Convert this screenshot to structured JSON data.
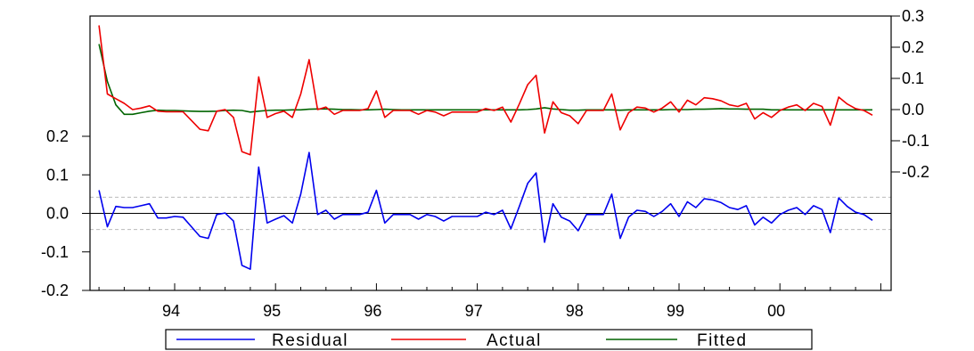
{
  "chart_data": {
    "type": "line",
    "x_ticks": [
      "94",
      "95",
      "96",
      "97",
      "98",
      "99",
      "00"
    ],
    "x_start": 1993.25,
    "x_step": 0.0833333,
    "left_axis": {
      "ylim": [
        -0.2,
        0.2
      ],
      "ticks": [
        "0.2",
        "0.1",
        "0.0",
        "-0.1",
        "-0.2"
      ]
    },
    "right_axis": {
      "ylim": [
        -0.2,
        0.3
      ],
      "ticks": [
        "0.3",
        "0.2",
        "0.1",
        "0.0",
        "-0.1",
        "-0.2"
      ]
    },
    "reference_lines_left": [
      0.0,
      0.042,
      -0.042
    ],
    "series": [
      {
        "name": "Residual",
        "axis": "left",
        "color": "#0000ee",
        "values": [
          0.06,
          -0.035,
          0.018,
          0.015,
          0.015,
          0.02,
          0.025,
          -0.012,
          -0.012,
          -0.008,
          -0.01,
          -0.035,
          -0.06,
          -0.065,
          -0.003,
          0.001,
          -0.02,
          -0.135,
          -0.145,
          0.12,
          -0.025,
          -0.015,
          -0.006,
          -0.025,
          0.05,
          0.158,
          -0.003,
          0.008,
          -0.015,
          -0.003,
          -0.003,
          -0.003,
          0.003,
          0.06,
          -0.025,
          -0.003,
          -0.003,
          -0.003,
          -0.015,
          -0.003,
          -0.008,
          -0.02,
          -0.008,
          -0.008,
          -0.008,
          -0.008,
          0.003,
          -0.003,
          0.008,
          -0.04,
          0.018,
          0.078,
          0.105,
          -0.075,
          0.025,
          -0.01,
          -0.02,
          -0.045,
          -0.003,
          -0.003,
          -0.003,
          0.05,
          -0.065,
          -0.01,
          0.008,
          0.005,
          -0.008,
          0.005,
          0.025,
          -0.008,
          0.03,
          0.015,
          0.038,
          0.035,
          0.028,
          0.015,
          0.01,
          0.02,
          -0.03,
          -0.01,
          -0.025,
          -0.003,
          0.008,
          0.015,
          -0.003,
          0.02,
          0.01,
          -0.05,
          0.04,
          0.018,
          0.003,
          -0.003,
          -0.018
        ]
      },
      {
        "name": "Actual",
        "axis": "right",
        "color": "#ee0000",
        "values": [
          0.27,
          0.05,
          0.035,
          0.02,
          0.0,
          0.005,
          0.012,
          -0.005,
          -0.007,
          -0.007,
          -0.007,
          -0.035,
          -0.063,
          -0.068,
          -0.005,
          0.0,
          -0.025,
          -0.135,
          -0.145,
          0.105,
          -0.025,
          -0.013,
          -0.005,
          -0.025,
          0.05,
          0.16,
          0.0,
          0.008,
          -0.015,
          -0.003,
          -0.003,
          -0.003,
          0.003,
          0.06,
          -0.025,
          -0.003,
          -0.003,
          -0.003,
          -0.015,
          -0.003,
          -0.008,
          -0.02,
          -0.008,
          -0.008,
          -0.008,
          -0.008,
          0.003,
          -0.003,
          0.008,
          -0.04,
          0.018,
          0.08,
          0.11,
          -0.075,
          0.025,
          -0.01,
          -0.02,
          -0.045,
          -0.003,
          -0.003,
          -0.003,
          0.05,
          -0.065,
          -0.01,
          0.008,
          0.005,
          -0.008,
          0.005,
          0.025,
          -0.008,
          0.03,
          0.015,
          0.038,
          0.035,
          0.028,
          0.015,
          0.01,
          0.02,
          -0.03,
          -0.01,
          -0.025,
          -0.003,
          0.008,
          0.015,
          -0.003,
          0.02,
          0.01,
          -0.05,
          0.04,
          0.018,
          0.003,
          -0.003,
          -0.018
        ]
      },
      {
        "name": "Fitted",
        "axis": "right",
        "color": "#006400",
        "values": [
          0.21,
          0.09,
          0.015,
          -0.015,
          -0.015,
          -0.01,
          -0.005,
          -0.002,
          -0.003,
          -0.003,
          -0.004,
          -0.005,
          -0.006,
          -0.006,
          -0.005,
          -0.003,
          -0.002,
          -0.003,
          -0.008,
          -0.005,
          -0.003,
          -0.002,
          -0.002,
          -0.001,
          -0.001,
          0.001,
          0.002,
          0.002,
          0.001,
          0.0,
          0.0,
          -0.001,
          -0.001,
          0.0,
          0.001,
          0.0,
          -0.001,
          -0.001,
          -0.001,
          -0.001,
          -0.001,
          -0.001,
          -0.001,
          -0.001,
          -0.001,
          -0.001,
          -0.001,
          -0.001,
          -0.001,
          -0.001,
          -0.001,
          0.0,
          0.002,
          0.006,
          0.002,
          0.0,
          -0.002,
          -0.002,
          -0.001,
          -0.001,
          -0.001,
          -0.001,
          -0.002,
          -0.001,
          -0.001,
          -0.001,
          -0.001,
          -0.001,
          0.0,
          0.0,
          0.0,
          0.001,
          0.001,
          0.002,
          0.003,
          0.002,
          0.002,
          0.001,
          0.001,
          0.001,
          -0.001,
          -0.001,
          -0.001,
          -0.001,
          -0.001,
          -0.001,
          -0.001,
          -0.001,
          -0.001,
          -0.001,
          -0.001,
          -0.001,
          -0.001
        ]
      }
    ],
    "legend": [
      "Residual",
      "Actual",
      "Fitted"
    ],
    "legend_position": "bottom-center"
  }
}
